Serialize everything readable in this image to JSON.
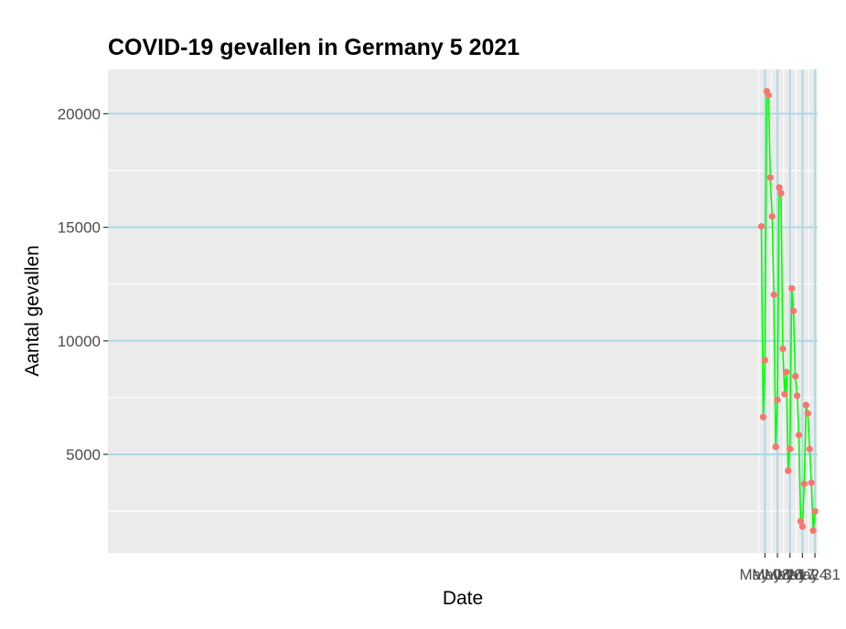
{
  "chart_data": {
    "type": "line",
    "title": "COVID-19 gevallen in Germany 5 2021",
    "xlabel": "Date",
    "ylabel": "Aantal gevallen",
    "x": [
      "2021-05-01",
      "2021-05-02",
      "2021-05-03",
      "2021-05-04",
      "2021-05-05",
      "2021-05-06",
      "2021-05-07",
      "2021-05-08",
      "2021-05-09",
      "2021-05-10",
      "2021-05-11",
      "2021-05-12",
      "2021-05-13",
      "2021-05-14",
      "2021-05-15",
      "2021-05-16",
      "2021-05-17",
      "2021-05-18",
      "2021-05-19",
      "2021-05-20",
      "2021-05-21",
      "2021-05-22",
      "2021-05-23",
      "2021-05-24",
      "2021-05-25",
      "2021-05-26",
      "2021-05-27",
      "2021-05-28",
      "2021-05-29",
      "2021-05-30",
      "2021-05-31"
    ],
    "values": [
      15040,
      6640,
      9150,
      20990,
      20820,
      17190,
      15480,
      12030,
      5330,
      7400,
      16750,
      16500,
      9650,
      7650,
      8620,
      4280,
      5240,
      12310,
      11310,
      8440,
      7580,
      5850,
      2050,
      1820,
      3700,
      7170,
      6800,
      5230,
      3750,
      1640,
      2490
    ],
    "x_ticks": [
      "2021-05-03",
      "2021-05-10",
      "2021-05-17",
      "2021-05-24",
      "2021-05-31"
    ],
    "x_tick_labels": [
      "May 03",
      "May 10",
      "May 17",
      "May 24",
      "May 31"
    ],
    "xlim": [
      "2020-04-30T05:00",
      "2021-06-01T12:00"
    ],
    "y_ticks": [
      5000,
      10000,
      15000,
      20000
    ],
    "y_tick_labels": [
      "5000",
      "10000",
      "15000",
      "20000"
    ],
    "ylim": [
      650,
      21950
    ],
    "grid": true,
    "legend": "none",
    "colors": {
      "line": "#00ff00",
      "points": "#f8766d",
      "panel": "#ebebeb",
      "major_grid": "#add8e6",
      "minor_grid": "#ffffff",
      "tick_label": "#4d4d4d"
    }
  }
}
